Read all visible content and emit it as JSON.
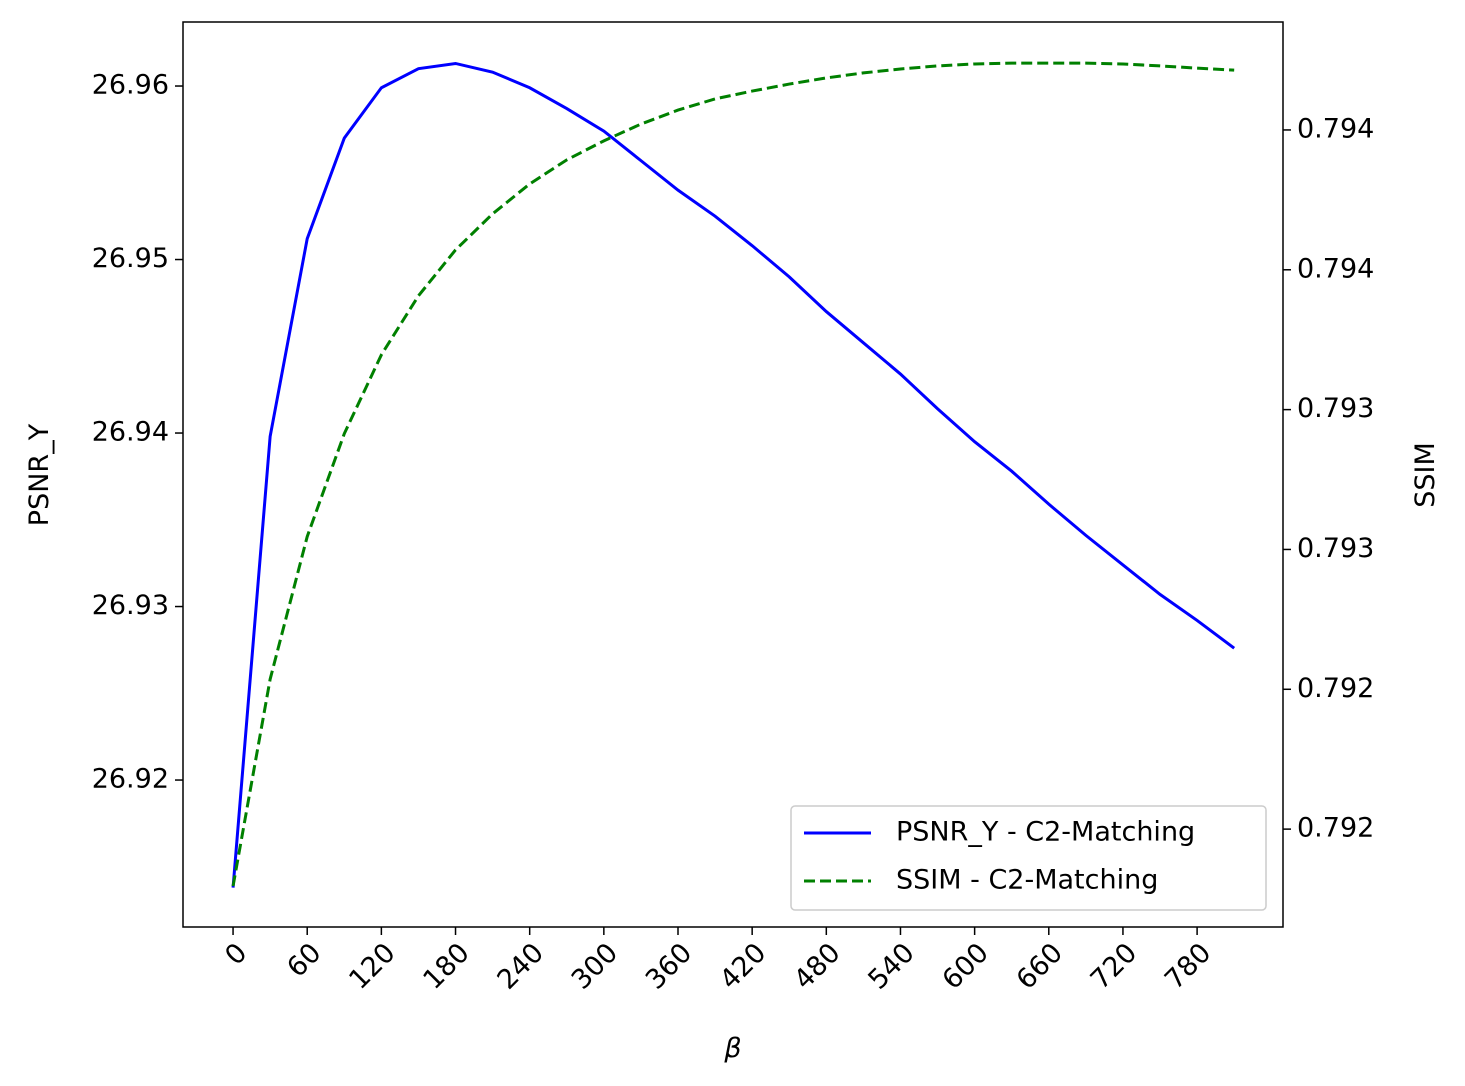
{
  "chart_data": {
    "type": "line",
    "xlabel": "β",
    "ylabel": "PSNR_Y",
    "y2label": "SSIM",
    "x": [
      0,
      30,
      60,
      90,
      120,
      150,
      180,
      210,
      240,
      270,
      300,
      330,
      360,
      390,
      420,
      450,
      480,
      510,
      540,
      570,
      600,
      630,
      660,
      690,
      720,
      750,
      780,
      810
    ],
    "xlim": [
      -40.5,
      849.5
    ],
    "xticks": [
      0,
      60,
      120,
      180,
      240,
      300,
      360,
      420,
      480,
      540,
      600,
      660,
      720,
      780
    ],
    "ylim": [
      26.91153,
      26.96369
    ],
    "yticks": [
      26.92,
      26.93,
      26.94,
      26.95,
      26.96
    ],
    "y2lim": [
      0.79115,
      0.794386
    ],
    "y2ticks": [
      {
        "value": 0.7915,
        "label": "0.792"
      },
      0.792,
      {
        "value": 0.7925,
        "label": "0.793"
      },
      0.793,
      {
        "value": 0.7935,
        "label": "0.794"
      },
      0.794
    ],
    "legend": "lower right",
    "series": [
      {
        "name": "PSNR_Y - C2-Matching",
        "color": "#0000ff",
        "linestyle": "solid",
        "values": [
          26.9138,
          26.9398,
          26.9512,
          26.957,
          26.9599,
          26.961,
          26.9613,
          26.9608,
          26.9599,
          26.9587,
          26.9574,
          26.9557,
          26.954,
          26.9525,
          26.9508,
          26.949,
          26.947,
          26.9452,
          26.9434,
          26.9414,
          26.9395,
          26.9378,
          26.9359,
          26.9341,
          26.9324,
          26.9307,
          26.9292,
          26.9276
        ]
      },
      {
        "name": "SSIM - C2-Matching",
        "color": "#008000",
        "linestyle": "dashed",
        "axis": "y2",
        "values": [
          0.791296,
          0.792036,
          0.792546,
          0.792914,
          0.793196,
          0.793407,
          0.793571,
          0.7937,
          0.793807,
          0.793893,
          0.793961,
          0.794021,
          0.794071,
          0.794111,
          0.794139,
          0.794164,
          0.794186,
          0.794204,
          0.794218,
          0.794229,
          0.794236,
          0.794239,
          0.794239,
          0.794239,
          0.794236,
          0.794229,
          0.794221,
          0.794214
        ]
      }
    ]
  }
}
